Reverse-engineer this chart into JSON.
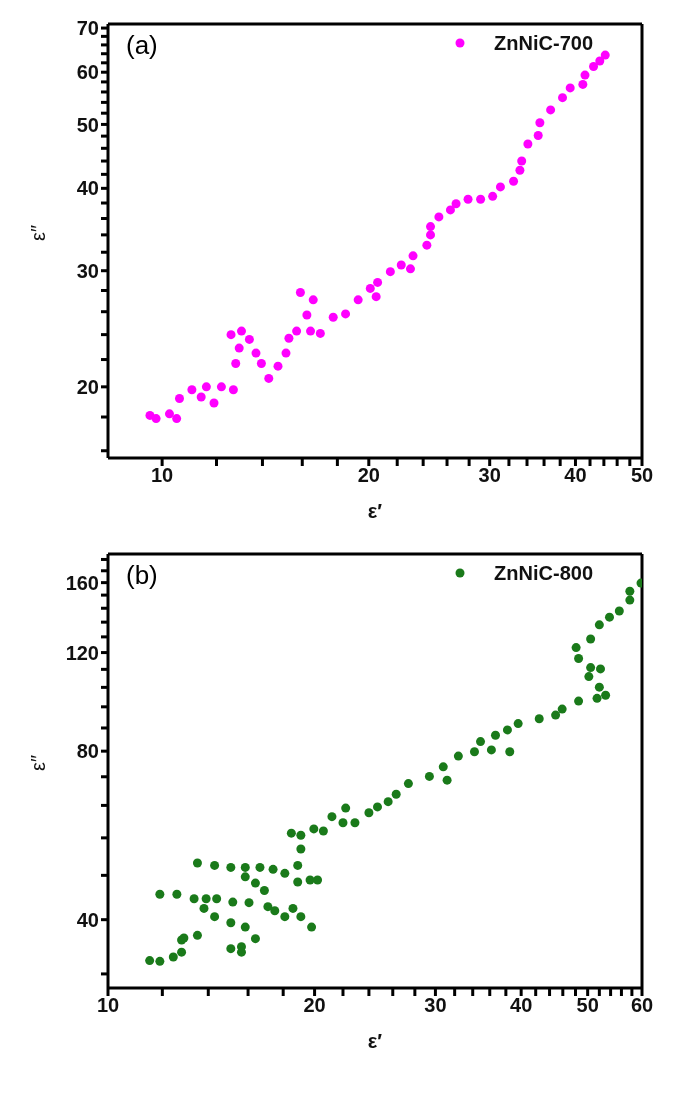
{
  "chart_data": [
    {
      "type": "scatter",
      "title": "(a)",
      "xlabel": "ε′",
      "ylabel": "ε″",
      "log": "xy",
      "xlim": [
        8.34,
        50
      ],
      "ylim": [
        15.6,
        71
      ],
      "legend": "top right",
      "marker": "circle",
      "grid": false,
      "xticks": [
        10,
        {
          "value": 12,
          "label": null
        },
        {
          "value": 14,
          "label": null
        },
        {
          "value": 16,
          "label": null
        },
        {
          "value": 18,
          "label": null
        },
        20,
        {
          "value": 22,
          "label": null
        },
        {
          "value": 24,
          "label": null
        },
        {
          "value": 26,
          "label": null
        },
        {
          "value": 28,
          "label": null
        },
        30,
        {
          "value": 32,
          "label": null
        },
        {
          "value": 34,
          "label": null
        },
        {
          "value": 36,
          "label": null
        },
        {
          "value": 38,
          "label": null
        },
        40,
        {
          "value": 42,
          "label": null
        },
        {
          "value": 44,
          "label": null
        },
        {
          "value": 46,
          "label": null
        },
        {
          "value": 48,
          "label": null
        },
        50
      ],
      "yticks": [
        {
          "value": 16,
          "label": null
        },
        {
          "value": 18,
          "label": null
        },
        20,
        {
          "value": 22,
          "label": null
        },
        {
          "value": 24,
          "label": null
        },
        {
          "value": 26,
          "label": null
        },
        {
          "value": 28,
          "label": null
        },
        30,
        {
          "value": 32,
          "label": null
        },
        {
          "value": 34,
          "label": null
        },
        {
          "value": 36,
          "label": null
        },
        {
          "value": 38,
          "label": null
        },
        40,
        {
          "value": 42,
          "label": null
        },
        {
          "value": 44,
          "label": null
        },
        {
          "value": 46,
          "label": null
        },
        {
          "value": 48,
          "label": null
        },
        50,
        {
          "value": 52,
          "label": null
        },
        {
          "value": 54,
          "label": null
        },
        {
          "value": 56,
          "label": null
        },
        {
          "value": 58,
          "label": null
        },
        60,
        {
          "value": 62,
          "label": null
        },
        {
          "value": 64,
          "label": null
        },
        {
          "value": 66,
          "label": null
        },
        {
          "value": 68,
          "label": null
        },
        70
      ],
      "series": [
        {
          "name": "ZnNiC-700",
          "color": "#ff00ff",
          "x": [
            9.6,
            9.8,
            10.25,
            10.5,
            10.6,
            11.05,
            11.4,
            11.6,
            11.9,
            12.2,
            12.7,
            12.8,
            12.95,
            12.6,
            13.05,
            13.4,
            13.7,
            13.95,
            14.3,
            14.75,
            15.15,
            15.3,
            15.7,
            15.9,
            16.6,
            16.25,
            16.45,
            17.0,
            17.75,
            18.5,
            19.3,
            20.1,
            20.5,
            20.6,
            21.5,
            22.3,
            23.0,
            23.2,
            24.3,
            24.6,
            24.6,
            25.3,
            26.3,
            26.8,
            27.9,
            29.1,
            30.3,
            31.1,
            32.5,
            33.2,
            33.4,
            34.1,
            35.3,
            35.5,
            36.8,
            38.3,
            39.3,
            41.0,
            41.3,
            42.5,
            43.4,
            44.2
          ],
          "values": [
            18.1,
            17.9,
            18.2,
            17.9,
            19.2,
            19.8,
            19.3,
            20.0,
            18.9,
            20.0,
            19.8,
            21.7,
            22.9,
            24.0,
            24.3,
            23.6,
            22.5,
            21.7,
            20.6,
            21.5,
            22.5,
            23.7,
            24.3,
            27.8,
            27.1,
            25.7,
            24.3,
            24.1,
            25.5,
            25.8,
            27.1,
            28.2,
            27.4,
            28.8,
            29.9,
            30.6,
            30.2,
            31.6,
            32.8,
            34.0,
            35.0,
            36.2,
            37.1,
            37.9,
            38.5,
            38.5,
            38.9,
            40.2,
            41.0,
            42.6,
            44.0,
            46.7,
            48.1,
            50.3,
            52.6,
            54.9,
            56.8,
            57.5,
            59.4,
            61.2,
            62.4,
            63.7
          ]
        }
      ]
    },
    {
      "type": "scatter",
      "title": "(b)",
      "xlabel": "ε′",
      "ylabel": "ε″",
      "log": "xy",
      "xlim": [
        10,
        60
      ],
      "ylim": [
        30.2,
        180
      ],
      "legend": "top right",
      "marker": "circle",
      "grid": false,
      "xticks": [
        10,
        {
          "value": 12,
          "label": null
        },
        {
          "value": 14,
          "label": null
        },
        {
          "value": 16,
          "label": null
        },
        {
          "value": 18,
          "label": null
        },
        20,
        {
          "value": 22,
          "label": null
        },
        {
          "value": 24,
          "label": null
        },
        {
          "value": 26,
          "label": null
        },
        {
          "value": 28,
          "label": null
        },
        30,
        {
          "value": 32,
          "label": null
        },
        {
          "value": 34,
          "label": null
        },
        {
          "value": 36,
          "label": null
        },
        {
          "value": 38,
          "label": null
        },
        40,
        {
          "value": 42,
          "label": null
        },
        {
          "value": 44,
          "label": null
        },
        {
          "value": 46,
          "label": null
        },
        {
          "value": 48,
          "label": null
        },
        50,
        {
          "value": 52,
          "label": null
        },
        {
          "value": 54,
          "label": null
        },
        {
          "value": 56,
          "label": null
        },
        {
          "value": 58,
          "label": null
        },
        60
      ],
      "yticks": [
        {
          "value": 32,
          "label": null
        },
        40,
        {
          "value": 48,
          "label": null
        },
        {
          "value": 56,
          "label": null
        },
        {
          "value": 64,
          "label": null
        },
        {
          "value": 72,
          "label": null
        },
        80,
        {
          "value": 88,
          "label": null
        },
        {
          "value": 96,
          "label": null
        },
        {
          "value": 104,
          "label": null
        },
        {
          "value": 112,
          "label": null
        },
        120,
        {
          "value": 128,
          "label": null
        },
        {
          "value": 136,
          "label": null
        },
        {
          "value": 144,
          "label": null
        },
        {
          "value": 152,
          "label": null
        },
        160,
        {
          "value": 168,
          "label": null
        },
        {
          "value": 176,
          "label": null
        }
      ],
      "series": [
        {
          "name": "ZnNiC-800",
          "color": "#1a7a1a",
          "x": [
            11.5,
            11.9,
            12.45,
            12.8,
            12.8,
            12.9,
            11.9,
            12.6,
            13.35,
            13.9,
            13.8,
            14.4,
            15.2,
            16.05,
            13.5,
            14.3,
            15.1,
            15.65,
            15.1,
            15.65,
            15.85,
            16.4,
            13.5,
            14.3,
            15.1,
            15.85,
            16.65,
            15.85,
            16.4,
            16.9,
            17.1,
            17.5,
            18.1,
            18.6,
            19.1,
            19.8,
            17.4,
            18.1,
            18.9,
            19.7,
            20.2,
            18.9,
            19.1,
            19.1,
            18.5,
            19.95,
            20.6,
            21.2,
            22.2,
            22.0,
            22.9,
            24.0,
            24.7,
            25.6,
            26.3,
            27.4,
            29.4,
            30.8,
            31.2,
            32.4,
            34.2,
            34.9,
            36.2,
            38.5,
            36.7,
            38.2,
            39.6,
            42.5,
            44.9,
            45.9,
            48.5,
            51.6,
            53.1,
            52.0,
            50.2,
            48.5,
            48.1,
            50.5,
            52.2,
            50.5,
            52.0,
            53.8,
            55.6,
            57.6,
            57.6,
            59.8
          ],
          "values": [
            33.8,
            33.7,
            34.3,
            35.0,
            36.8,
            37.1,
            44.4,
            44.4,
            43.6,
            43.6,
            41.9,
            43.6,
            43.0,
            42.9,
            37.5,
            40.5,
            39.5,
            35.8,
            35.5,
            35.0,
            38.8,
            37.0,
            50.5,
            50.0,
            49.6,
            49.6,
            49.6,
            47.7,
            46.5,
            45.1,
            42.2,
            41.5,
            40.5,
            41.9,
            40.5,
            38.8,
            49.2,
            48.4,
            46.7,
            47.1,
            47.1,
            50.0,
            53.5,
            56.6,
            57.1,
            58.1,
            57.6,
            61.1,
            63.3,
            59.6,
            59.6,
            62.1,
            63.6,
            65.0,
            67.0,
            70.0,
            72.1,
            75.0,
            71.0,
            78.4,
            79.8,
            83.2,
            80.4,
            79.8,
            85.4,
            87.3,
            89.6,
            91.4,
            92.8,
            95.1,
            98.3,
            99.4,
            100.7,
            104.1,
            108.7,
            117.1,
            122.5,
            112.8,
            112.2,
            126.9,
            134.5,
            138.8,
            142.4,
            148.9,
            154.4,
            159.7
          ]
        }
      ]
    }
  ]
}
